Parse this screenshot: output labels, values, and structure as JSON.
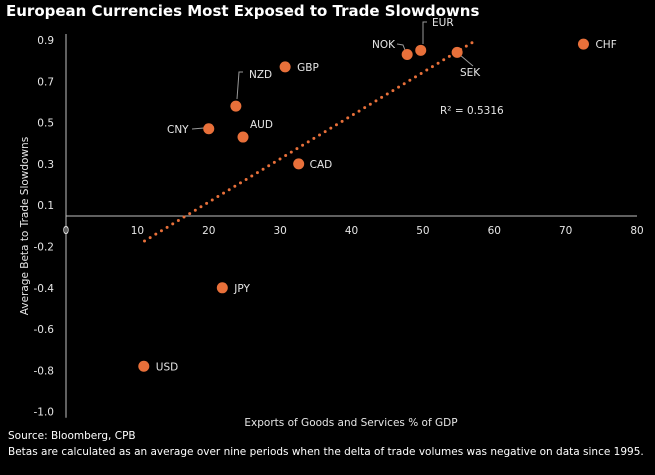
{
  "chart_data": {
    "type": "scatter",
    "title": "European Currencies Most Exposed to Trade Slowdowns",
    "xlabel": "Exports of Goods and Services % of GDP",
    "ylabel": "Average Beta to Trade Slowdowns",
    "xlim": [
      0,
      80
    ],
    "x_ticks": [
      "0",
      "10",
      "20",
      "30",
      "40",
      "50",
      "60",
      "70",
      "80"
    ],
    "y_ticks": [
      "0.9",
      "0.7",
      "0.5",
      "0.3",
      "0.1",
      "-0.2",
      "-0.4",
      "-0.6",
      "-0.8",
      "-1.0"
    ],
    "grid": false,
    "legend": "none",
    "point_color": "#e8703a",
    "points": [
      {
        "label": "GBP",
        "x": 30.7,
        "y": 0.77
      },
      {
        "label": "NZD",
        "x": 23.8,
        "y": 0.58
      },
      {
        "label": "CNY",
        "x": 20.0,
        "y": 0.47
      },
      {
        "label": "AUD",
        "x": 24.8,
        "y": 0.43
      },
      {
        "label": "CAD",
        "x": 32.6,
        "y": 0.3
      },
      {
        "label": "JPY",
        "x": 21.9,
        "y": -0.4
      },
      {
        "label": "USD",
        "x": 10.9,
        "y": -0.78
      },
      {
        "label": "NOK",
        "x": 47.8,
        "y": 0.83
      },
      {
        "label": "EUR",
        "x": 49.7,
        "y": 0.85
      },
      {
        "label": "SEK",
        "x": 54.8,
        "y": 0.84
      },
      {
        "label": "CHF",
        "x": 72.5,
        "y": 0.88
      }
    ],
    "trendline": {
      "type": "linear",
      "x": [
        11,
        57.5
      ],
      "y": [
        -0.16,
        0.9
      ],
      "r2_label": "R² = 0.5316"
    }
  },
  "source": "Source: Bloomberg, CPB",
  "footnote": "Betas are calculated as an average over nine periods when the delta of trade volumes was negative on data since 1995."
}
